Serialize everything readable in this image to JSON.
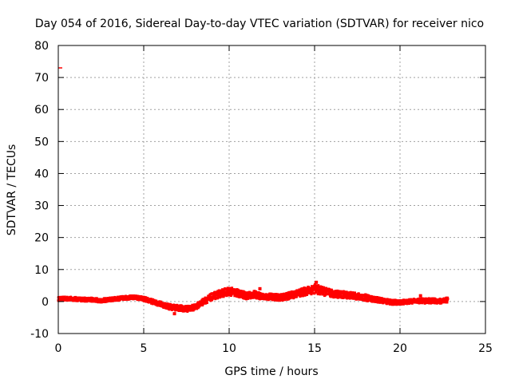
{
  "chart_data": {
    "type": "scatter",
    "title": "Day 054 of 2016, Sidereal Day-to-day VTEC variation (SDTVAR) for receiver nico",
    "xlabel": "GPS time / hours",
    "ylabel": "SDTVAR / TECUs",
    "xlim": [
      0,
      25
    ],
    "ylim": [
      -10,
      80
    ],
    "xticks": [
      0,
      5,
      10,
      15,
      20,
      25
    ],
    "yticks": [
      -10,
      0,
      10,
      20,
      30,
      40,
      50,
      60,
      70,
      80
    ],
    "grid": true,
    "series": [
      {
        "name": "SDTVAR",
        "color": "#ff0000",
        "x": [
          0.0,
          0.5,
          1.0,
          1.5,
          2.0,
          2.5,
          3.0,
          3.5,
          4.0,
          4.5,
          5.0,
          5.5,
          6.0,
          6.5,
          7.0,
          7.5,
          8.0,
          8.5,
          9.0,
          9.5,
          10.0,
          10.5,
          11.0,
          11.5,
          12.0,
          12.5,
          13.0,
          13.5,
          14.0,
          14.5,
          15.0,
          15.5,
          16.0,
          16.5,
          17.0,
          17.5,
          18.0,
          18.5,
          19.0,
          19.5,
          20.0,
          20.5,
          21.0,
          21.5,
          22.0,
          22.5,
          22.8
        ],
        "y": [
          0.8,
          0.9,
          0.8,
          0.6,
          0.6,
          0.3,
          0.6,
          0.9,
          1.2,
          1.3,
          0.8,
          0.0,
          -0.8,
          -1.6,
          -2.0,
          -2.3,
          -1.8,
          0.0,
          1.5,
          2.5,
          3.2,
          2.6,
          1.8,
          2.2,
          1.5,
          1.5,
          1.2,
          1.8,
          2.5,
          3.2,
          4.0,
          3.2,
          2.5,
          2.2,
          2.0,
          1.6,
          1.2,
          0.7,
          0.2,
          -0.2,
          -0.3,
          0.0,
          0.2,
          0.2,
          0.2,
          0.1,
          0.5
        ],
        "spread": [
          0.6,
          0.6,
          0.6,
          0.6,
          0.6,
          0.6,
          0.6,
          0.6,
          0.6,
          0.6,
          0.7,
          0.7,
          0.8,
          0.9,
          0.9,
          0.9,
          0.9,
          1.0,
          1.1,
          1.2,
          1.3,
          1.2,
          1.1,
          1.1,
          1.0,
          1.0,
          1.0,
          1.1,
          1.2,
          1.3,
          1.5,
          1.3,
          1.2,
          1.1,
          1.1,
          1.0,
          1.0,
          0.9,
          0.8,
          0.8,
          0.7,
          0.7,
          0.7,
          0.8,
          0.8,
          0.8,
          0.8
        ]
      }
    ],
    "outliers": [
      {
        "x": 0.0,
        "y": 73.0
      },
      {
        "x": 6.8,
        "y": -3.8
      },
      {
        "x": 11.8,
        "y": 4.0
      },
      {
        "x": 15.1,
        "y": 6.0
      },
      {
        "x": 21.2,
        "y": 1.8
      }
    ]
  }
}
